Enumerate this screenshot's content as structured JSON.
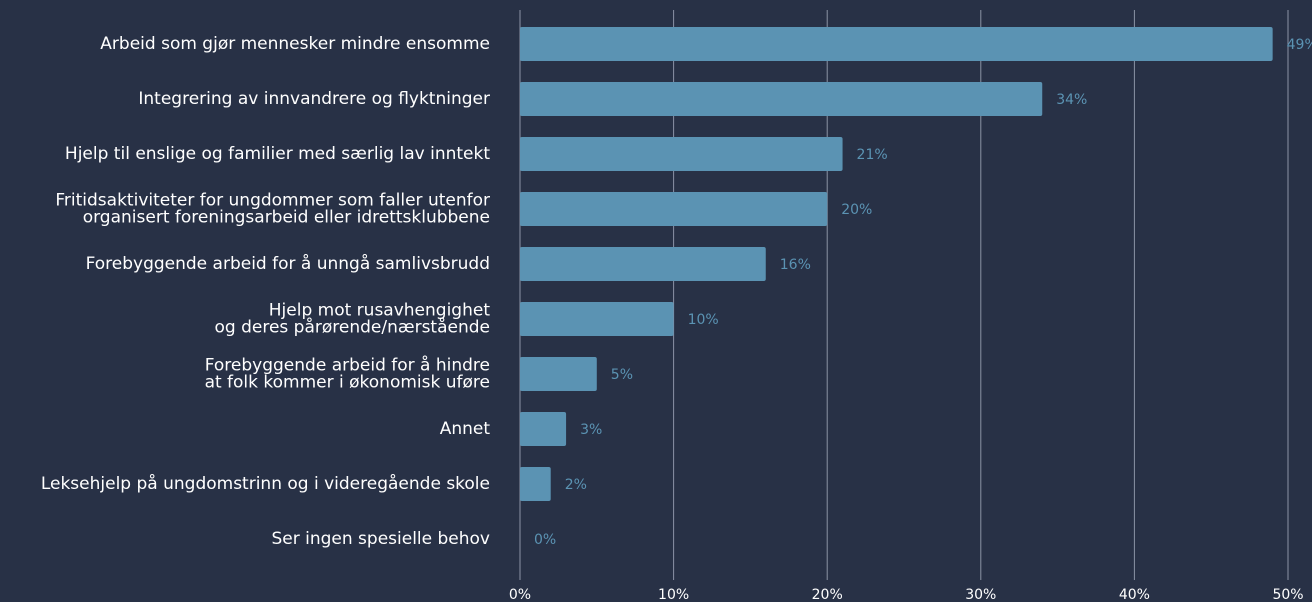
{
  "chart_data": {
    "type": "bar",
    "orientation": "horizontal",
    "categories": [
      "Arbeid som gjør mennesker mindre ensomme",
      "Integrering av innvandrere og flyktninger",
      "Hjelp til enslige og familier med særlig lav inntekt",
      "Fritidsaktiviteter for ungdommer som faller utenfor\norganisert foreningsarbeid eller idrettsklubbene",
      "Forebyggende arbeid for å unngå samlivsbrudd",
      "Hjelp mot rusavhengighet\nog deres pårørende/nærstående",
      "Forebyggende arbeid for å hindre\nat folk kommer i økonomisk uføre",
      "Annet",
      "Leksehjelp på ungdomstrinn og i videregående skole",
      "Ser ingen spesielle behov"
    ],
    "values": [
      49,
      34,
      21,
      20,
      16,
      10,
      5,
      3,
      2,
      0
    ],
    "value_labels": [
      "49%",
      "34%",
      "21%",
      "20%",
      "16%",
      "10%",
      "5%",
      "3%",
      "2%",
      "0%"
    ],
    "color": "#5b93b3",
    "xlim": [
      0,
      50
    ],
    "xticks": [
      {
        "value": 0,
        "label": "0%"
      },
      {
        "value": 10,
        "label": "10%"
      },
      {
        "value": 20,
        "label": "20%"
      },
      {
        "value": 30,
        "label": "30%"
      },
      {
        "value": 40,
        "label": "40%"
      },
      {
        "value": 50,
        "label": "50%"
      }
    ],
    "grid": true
  }
}
